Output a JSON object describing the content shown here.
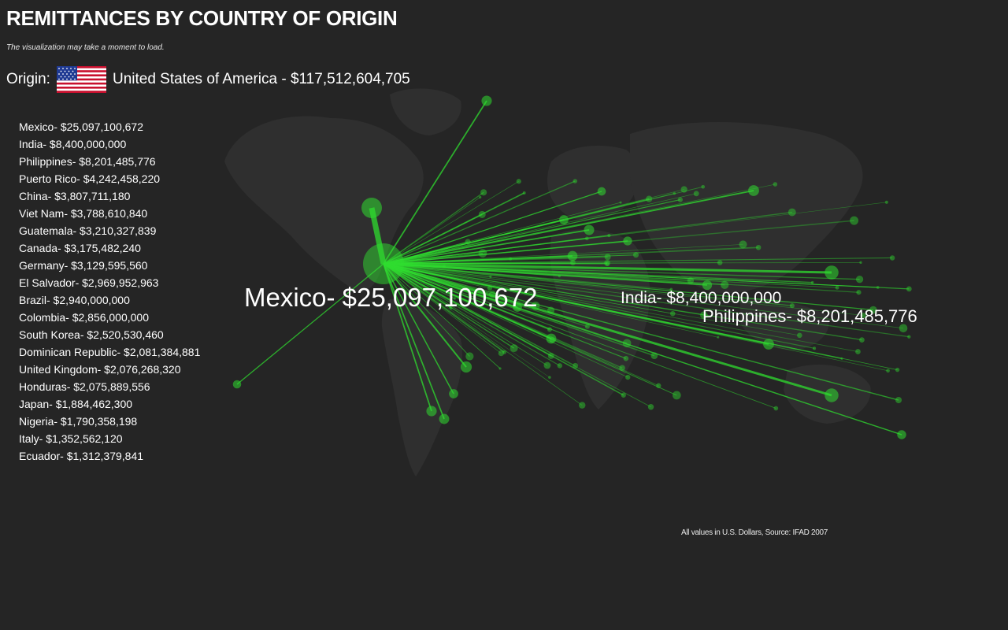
{
  "page": {
    "title": "REMITTANCES BY COUNTRY OF ORIGIN",
    "note": "The visualization may take a moment to load.",
    "source": "All values in U.S. Dollars, Source: IFAD 2007"
  },
  "origin": {
    "prefix": "Origin:",
    "text": "United States of America - $117,512,604,705",
    "flag_icon": "usa-flag-icon"
  },
  "colors": {
    "background": "#252525",
    "map": "#2f2f2f",
    "flow": "#2fdc2f",
    "text": "#ffffff"
  },
  "destinations": [
    {
      "name": "Mexico",
      "text": "Mexico- $25,097,100,672",
      "value": 25097100672
    },
    {
      "name": "India",
      "text": "India- $8,400,000,000",
      "value": 8400000000
    },
    {
      "name": "Philippines",
      "text": "Philippines- $8,201,485,776",
      "value": 8201485776
    },
    {
      "name": "Puerto Rico",
      "text": "Puerto Rico- $4,242,458,220",
      "value": 4242458220
    },
    {
      "name": "China",
      "text": "China- $3,807,711,180",
      "value": 3807711180
    },
    {
      "name": "Viet Nam",
      "text": "Viet Nam- $3,788,610,840",
      "value": 3788610840
    },
    {
      "name": "Guatemala",
      "text": "Guatemala- $3,210,327,839",
      "value": 3210327839
    },
    {
      "name": "Canada",
      "text": "Canada- $3,175,482,240",
      "value": 3175482240
    },
    {
      "name": "Germany",
      "text": "Germany- $3,129,595,560",
      "value": 3129595560
    },
    {
      "name": "El Salvador",
      "text": "El Salvador- $2,969,952,963",
      "value": 2969952963
    },
    {
      "name": "Brazil",
      "text": "Brazil- $2,940,000,000",
      "value": 2940000000
    },
    {
      "name": "Colombia",
      "text": "Colombia- $2,856,000,000",
      "value": 2856000000
    },
    {
      "name": "South Korea",
      "text": "South Korea- $2,520,530,460",
      "value": 2520530460
    },
    {
      "name": "Dominican Republic",
      "text": "Dominican Republic- $2,081,384,881",
      "value": 2081384881
    },
    {
      "name": "United Kingdom",
      "text": "United Kingdom- $2,076,268,320",
      "value": 2076268320
    },
    {
      "name": "Honduras",
      "text": "Honduras- $2,075,889,556",
      "value": 2075889556
    },
    {
      "name": "Japan",
      "text": "Japan- $1,884,462,300",
      "value": 1884462300
    },
    {
      "name": "Nigeria",
      "text": "Nigeria- $1,790,358,198",
      "value": 1790358198
    },
    {
      "name": "Italy",
      "text": "Italy- $1,352,562,120",
      "value": 1352562120
    },
    {
      "name": "Ecuador",
      "text": "Ecuador- $1,312,379,841",
      "value": 1312379841
    }
  ],
  "map_labels": [
    {
      "text": "Mexico- $25,097,100,672"
    },
    {
      "text": "India- $8,400,000,000"
    },
    {
      "text": "Philippines- $8,201,485,776"
    }
  ]
}
